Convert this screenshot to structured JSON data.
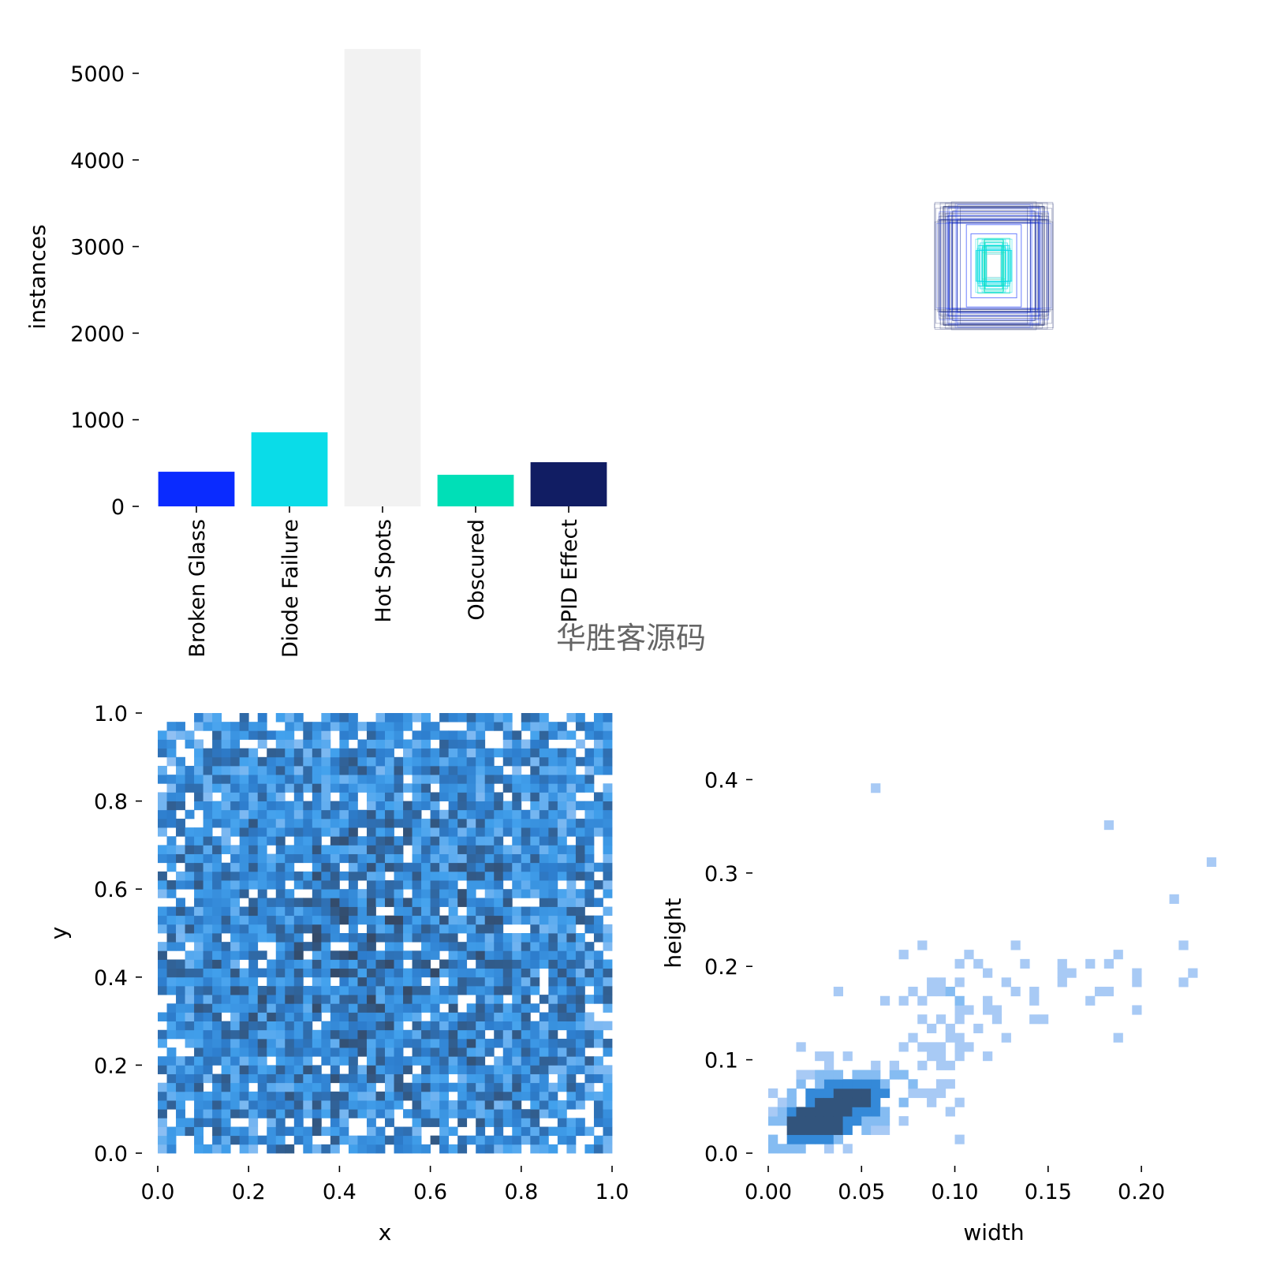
{
  "colors": {
    "Broken Glass": "#0a2bff",
    "Diode Failure": "#0adce8",
    "Hot Spots": "#f2f2f2",
    "Obscured": "#00dfb7",
    "PID Effect": "#111d63"
  },
  "watermark": "华胜客源码",
  "chart_data": [
    {
      "type": "bar",
      "title": "",
      "xlabel": "",
      "ylabel": "instances",
      "categories": [
        "Broken Glass",
        "Diode Failure",
        "Hot Spots",
        "Obscured",
        "PID Effect"
      ],
      "values": [
        400,
        855,
        5280,
        365,
        510
      ],
      "ylim": [
        0,
        5300
      ],
      "yticks": [
        "0",
        "1000",
        "2000",
        "3000",
        "4000",
        "5000"
      ],
      "grid": false
    },
    {
      "type": "box_overlay",
      "title": "",
      "description_items": [
        "normalized label box outlines centered at (0.5, 0.5)"
      ],
      "box_sizes": [
        {
          "w": 0.22,
          "h": 0.26,
          "category": "PID Effect"
        },
        {
          "w": 0.18,
          "h": 0.24,
          "category": "PID Effect"
        },
        {
          "w": 0.2,
          "h": 0.22,
          "category": "Broken Glass"
        },
        {
          "w": 0.16,
          "h": 0.2,
          "category": "PID Effect"
        },
        {
          "w": 0.12,
          "h": 0.18,
          "category": "Broken Glass"
        },
        {
          "w": 0.24,
          "h": 0.2,
          "category": "PID Effect"
        },
        {
          "w": 0.1,
          "h": 0.14,
          "category": "Broken Glass"
        },
        {
          "w": 0.06,
          "h": 0.1,
          "category": "Diode Failure"
        },
        {
          "w": 0.05,
          "h": 0.08,
          "category": "Diode Failure"
        },
        {
          "w": 0.04,
          "h": 0.06,
          "category": "Hot Spots"
        },
        {
          "w": 0.07,
          "h": 0.12,
          "category": "Obscured"
        },
        {
          "w": 0.03,
          "h": 0.05,
          "category": "Hot Spots"
        }
      ]
    },
    {
      "type": "heatmap",
      "title": "",
      "xlabel": "x",
      "ylabel": "y",
      "xlim": [
        0,
        1
      ],
      "ylim": [
        0,
        1
      ],
      "xticks": [
        "0.0",
        "0.2",
        "0.4",
        "0.6",
        "0.8",
        "1.0"
      ],
      "yticks": [
        "0.0",
        "0.2",
        "0.4",
        "0.6",
        "0.8",
        "1.0"
      ],
      "bins": 50,
      "distribution": "near-uniform label centers, densest near (0.45, 0.45)"
    },
    {
      "type": "heatmap",
      "title": "",
      "xlabel": "width",
      "ylabel": "height",
      "xlim": [
        0,
        0.24
      ],
      "ylim": [
        0,
        0.45
      ],
      "xticks": [
        "0.00",
        "0.05",
        "0.10",
        "0.15",
        "0.20"
      ],
      "yticks": [
        "0.0",
        "0.1",
        "0.2",
        "0.3",
        "0.4"
      ],
      "peak": {
        "width": 0.025,
        "height": 0.03
      },
      "distribution": "dense cluster at small width/height, sparse tail toward larger boxes"
    }
  ]
}
